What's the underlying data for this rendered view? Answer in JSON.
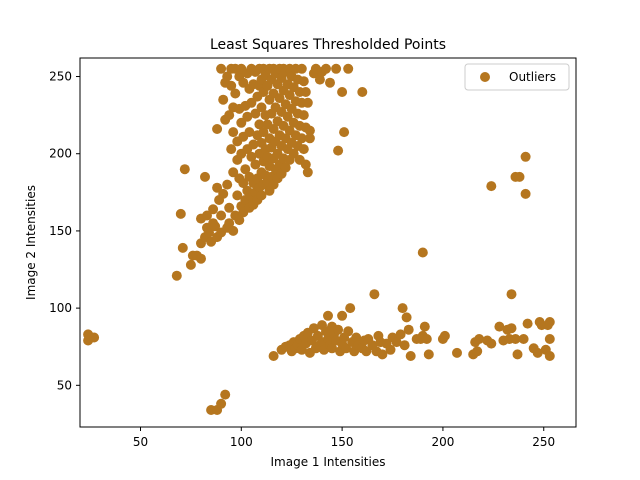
{
  "chart_data": {
    "type": "scatter",
    "title": "Least Squares Thresholded Points",
    "xlabel": "Image 1 Intensities",
    "ylabel": "Image 2 Intensities",
    "xlim": [
      20,
      266
    ],
    "ylim": [
      23,
      262
    ],
    "xticks": [
      50,
      100,
      150,
      200,
      250
    ],
    "yticks": [
      50,
      100,
      150,
      200,
      250
    ],
    "grid": false,
    "legend_position": "top-right",
    "series": [
      {
        "name": "Outliers",
        "color": "#b5761f",
        "points": [
          [
            24,
            83
          ],
          [
            24,
            79
          ],
          [
            27,
            81
          ],
          [
            68,
            121
          ],
          [
            70,
            161
          ],
          [
            71,
            139
          ],
          [
            72,
            190
          ],
          [
            75,
            128
          ],
          [
            76,
            134
          ],
          [
            78,
            134
          ],
          [
            80,
            132
          ],
          [
            80,
            142
          ],
          [
            80,
            158
          ],
          [
            82,
            185
          ],
          [
            82,
            146
          ],
          [
            83,
            152
          ],
          [
            83,
            160
          ],
          [
            84,
            149
          ],
          [
            85,
            143
          ],
          [
            86,
            155
          ],
          [
            86,
            164
          ],
          [
            87,
            153
          ],
          [
            88,
            146
          ],
          [
            88,
            216
          ],
          [
            88,
            178
          ],
          [
            89,
            170
          ],
          [
            90,
            149
          ],
          [
            90,
            160
          ],
          [
            90,
            255
          ],
          [
            91,
            174
          ],
          [
            91,
            235
          ],
          [
            92,
            246
          ],
          [
            92,
            222
          ],
          [
            93,
            250
          ],
          [
            93,
            152
          ],
          [
            93,
            180
          ],
          [
            94,
            155
          ],
          [
            94,
            225
          ],
          [
            94,
            165
          ],
          [
            95,
            255
          ],
          [
            95,
            244
          ],
          [
            95,
            203
          ],
          [
            96,
            150
          ],
          [
            96,
            230
          ],
          [
            96,
            188
          ],
          [
            96,
            214
          ],
          [
            97,
            255
          ],
          [
            97,
            239
          ],
          [
            97,
            160
          ],
          [
            98,
            208
          ],
          [
            98,
            196
          ],
          [
            98,
            173
          ],
          [
            99,
            250
          ],
          [
            99,
            229
          ],
          [
            99,
            184
          ],
          [
            99,
            157
          ],
          [
            100,
            255
          ],
          [
            100,
            220
          ],
          [
            100,
            200
          ],
          [
            100,
            166
          ],
          [
            101,
            246
          ],
          [
            101,
            211
          ],
          [
            101,
            181
          ],
          [
            101,
            162
          ],
          [
            102,
            231
          ],
          [
            102,
            190
          ],
          [
            102,
            170
          ],
          [
            103,
            252
          ],
          [
            103,
            224
          ],
          [
            103,
            203
          ],
          [
            103,
            176
          ],
          [
            104,
            242
          ],
          [
            104,
            214
          ],
          [
            104,
            185
          ],
          [
            104,
            165
          ],
          [
            105,
            255
          ],
          [
            105,
            233
          ],
          [
            105,
            198
          ],
          [
            105,
            172
          ],
          [
            106,
            245
          ],
          [
            106,
            206
          ],
          [
            106,
            181
          ],
          [
            106,
            167
          ],
          [
            107,
            253
          ],
          [
            107,
            226
          ],
          [
            107,
            193
          ],
          [
            107,
            175
          ],
          [
            108,
            237
          ],
          [
            108,
            212
          ],
          [
            108,
            184
          ],
          [
            108,
            170
          ],
          [
            109,
            255
          ],
          [
            109,
            244
          ],
          [
            109,
            219
          ],
          [
            109,
            200
          ],
          [
            109,
            178
          ],
          [
            110,
            248
          ],
          [
            110,
            230
          ],
          [
            110,
            207
          ],
          [
            110,
            188
          ],
          [
            110,
            173
          ],
          [
            111,
            255
          ],
          [
            111,
            240
          ],
          [
            111,
            214
          ],
          [
            111,
            195
          ],
          [
            111,
            180
          ],
          [
            112,
            251
          ],
          [
            112,
            225
          ],
          [
            112,
            203
          ],
          [
            112,
            186
          ],
          [
            113,
            244
          ],
          [
            113,
            219
          ],
          [
            113,
            198
          ],
          [
            113,
            182
          ],
          [
            114,
            255
          ],
          [
            114,
            235
          ],
          [
            114,
            210
          ],
          [
            114,
            192
          ],
          [
            114,
            176
          ],
          [
            115,
            248
          ],
          [
            115,
            226
          ],
          [
            115,
            204
          ],
          [
            115,
            185
          ],
          [
            116,
            255
          ],
          [
            116,
            239
          ],
          [
            116,
            216
          ],
          [
            116,
            197
          ],
          [
            116,
            180
          ],
          [
            117,
            252
          ],
          [
            117,
            230
          ],
          [
            117,
            208
          ],
          [
            117,
            190
          ],
          [
            118,
            245
          ],
          [
            118,
            221
          ],
          [
            118,
            200
          ],
          [
            118,
            184
          ],
          [
            119,
            255
          ],
          [
            119,
            236
          ],
          [
            119,
            212
          ],
          [
            119,
            193
          ],
          [
            120,
            249
          ],
          [
            120,
            227
          ],
          [
            120,
            205
          ],
          [
            120,
            187
          ],
          [
            121,
            255
          ],
          [
            121,
            241
          ],
          [
            121,
            218
          ],
          [
            121,
            197
          ],
          [
            122,
            253
          ],
          [
            122,
            232
          ],
          [
            122,
            210
          ],
          [
            122,
            191
          ],
          [
            123,
            245
          ],
          [
            123,
            224
          ],
          [
            123,
            203
          ],
          [
            124,
            255
          ],
          [
            124,
            238
          ],
          [
            124,
            215
          ],
          [
            124,
            196
          ],
          [
            125,
            250
          ],
          [
            125,
            229
          ],
          [
            125,
            207
          ],
          [
            126,
            243
          ],
          [
            126,
            220
          ],
          [
            126,
            200
          ],
          [
            127,
            255
          ],
          [
            127,
            234
          ],
          [
            127,
            212
          ],
          [
            128,
            248
          ],
          [
            128,
            226
          ],
          [
            128,
            205
          ],
          [
            129,
            240
          ],
          [
            129,
            218
          ],
          [
            129,
            196
          ],
          [
            130,
            255
          ],
          [
            130,
            233
          ],
          [
            130,
            210
          ],
          [
            131,
            247
          ],
          [
            131,
            225
          ],
          [
            131,
            203
          ],
          [
            132,
            240
          ],
          [
            132,
            217
          ],
          [
            132,
            193
          ],
          [
            133,
            233
          ],
          [
            133,
            188
          ],
          [
            134,
            215
          ],
          [
            134,
            210
          ],
          [
            136,
            252
          ],
          [
            137,
            255
          ],
          [
            139,
            248
          ],
          [
            140,
            253
          ],
          [
            142,
            255
          ],
          [
            144,
            246
          ],
          [
            147,
            255
          ],
          [
            148,
            202
          ],
          [
            150,
            240
          ],
          [
            151,
            214
          ],
          [
            153,
            255
          ],
          [
            160,
            240
          ],
          [
            85,
            34
          ],
          [
            88,
            34
          ],
          [
            90,
            38
          ],
          [
            92,
            44
          ],
          [
            116,
            69
          ],
          [
            120,
            73
          ],
          [
            122,
            75
          ],
          [
            124,
            76
          ],
          [
            125,
            72
          ],
          [
            126,
            78
          ],
          [
            127,
            74
          ],
          [
            128,
            76
          ],
          [
            129,
            80
          ],
          [
            130,
            73
          ],
          [
            131,
            82
          ],
          [
            132,
            77
          ],
          [
            133,
            84
          ],
          [
            134,
            71
          ],
          [
            135,
            79
          ],
          [
            136,
            87
          ],
          [
            137,
            74
          ],
          [
            138,
            82
          ],
          [
            139,
            76
          ],
          [
            140,
            89
          ],
          [
            140,
            78
          ],
          [
            141,
            73
          ],
          [
            142,
            85
          ],
          [
            143,
            95
          ],
          [
            143,
            80
          ],
          [
            144,
            76
          ],
          [
            145,
            88
          ],
          [
            145,
            74
          ],
          [
            146,
            83
          ],
          [
            147,
            79
          ],
          [
            148,
            86
          ],
          [
            149,
            72
          ],
          [
            150,
            77
          ],
          [
            150,
            95
          ],
          [
            151,
            81
          ],
          [
            152,
            74
          ],
          [
            153,
            85
          ],
          [
            154,
            100
          ],
          [
            155,
            78
          ],
          [
            156,
            72
          ],
          [
            157,
            81
          ],
          [
            158,
            76
          ],
          [
            160,
            74
          ],
          [
            161,
            79
          ],
          [
            162,
            72
          ],
          [
            163,
            80
          ],
          [
            165,
            76
          ],
          [
            166,
            109
          ],
          [
            167,
            72
          ],
          [
            168,
            82
          ],
          [
            169,
            78
          ],
          [
            170,
            70
          ],
          [
            172,
            77
          ],
          [
            174,
            73
          ],
          [
            175,
            81
          ],
          [
            177,
            78
          ],
          [
            179,
            83
          ],
          [
            180,
            100
          ],
          [
            181,
            76
          ],
          [
            182,
            94
          ],
          [
            183,
            86
          ],
          [
            184,
            69
          ],
          [
            187,
            80
          ],
          [
            189,
            80
          ],
          [
            190,
            82
          ],
          [
            191,
            88
          ],
          [
            192,
            80
          ],
          [
            193,
            70
          ],
          [
            200,
            80
          ],
          [
            201,
            82
          ],
          [
            207,
            71
          ],
          [
            215,
            70
          ],
          [
            216,
            78
          ],
          [
            217,
            72
          ],
          [
            218,
            80
          ],
          [
            222,
            79
          ],
          [
            224,
            77
          ],
          [
            228,
            88
          ],
          [
            230,
            79
          ],
          [
            232,
            86
          ],
          [
            233,
            80
          ],
          [
            234,
            87
          ],
          [
            236,
            80
          ],
          [
            237,
            70
          ],
          [
            240,
            80
          ],
          [
            242,
            90
          ],
          [
            245,
            74
          ],
          [
            247,
            71
          ],
          [
            248,
            91
          ],
          [
            249,
            89
          ],
          [
            251,
            73
          ],
          [
            252,
            89
          ],
          [
            253,
            91
          ],
          [
            253,
            80
          ],
          [
            253,
            69
          ],
          [
            190,
            136
          ],
          [
            224,
            179
          ],
          [
            234,
            109
          ],
          [
            236,
            185
          ],
          [
            238,
            185
          ],
          [
            241,
            198
          ],
          [
            241,
            174
          ]
        ]
      }
    ]
  }
}
